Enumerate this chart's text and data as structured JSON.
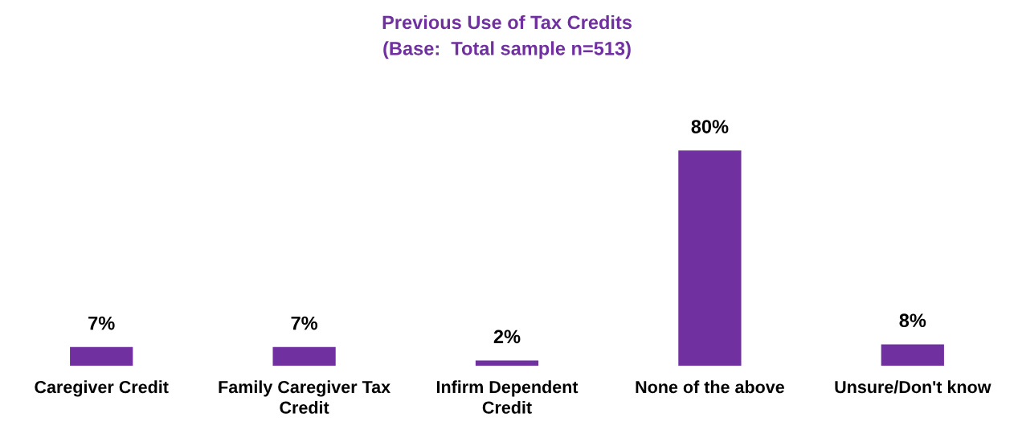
{
  "chart_data": {
    "type": "bar",
    "title": "Previous Use of Tax Credits",
    "subtitle": "(Base:  Total sample n=513)",
    "categories": [
      "Caregiver Credit",
      "Family Caregiver Tax Credit",
      "Infirm Dependent Credit",
      "None of the above",
      "Unsure/Don't know"
    ],
    "values": [
      7,
      7,
      2,
      80,
      8
    ],
    "color": "#7030a0",
    "value_labels": [
      "7%",
      "7%",
      "2%",
      "80%",
      "8%"
    ]
  }
}
